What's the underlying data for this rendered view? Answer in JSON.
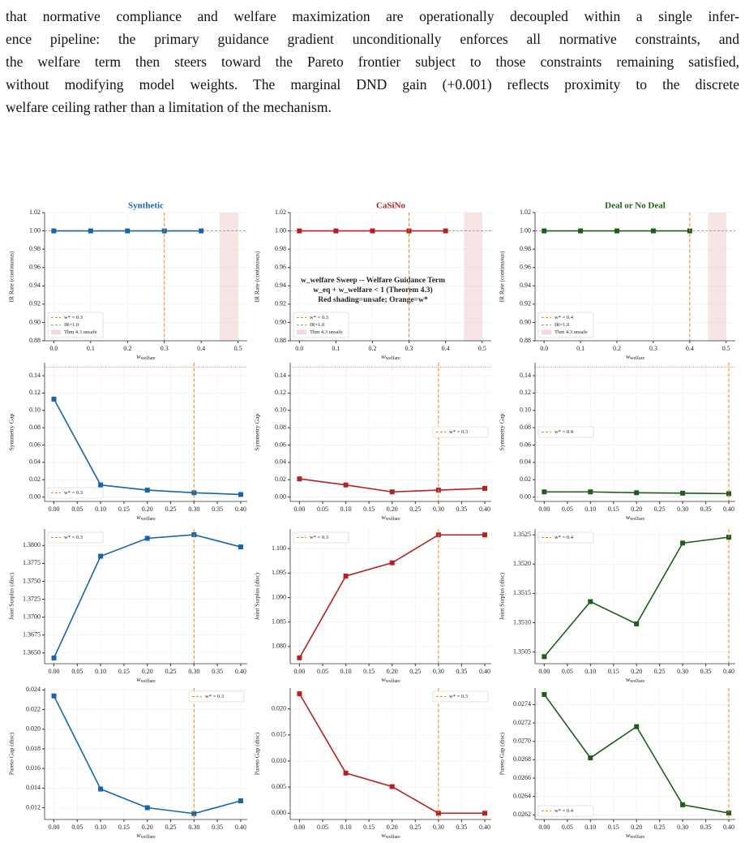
{
  "paragraph": {
    "lines": [
      "that normative compliance and welfare maximization are operationally decoupled within a single infer-",
      "ence pipeline: the primary guidance gradient unconditionally enforces all normative constraints, and",
      "the welfare term then steers toward the Pareto frontier subject to those constraints remaining satisfied,",
      "without modifying model weights. The marginal DND gain (+0.001) reflects proximity to the discrete",
      "welfare ceiling rather than a limitation of the mechanism."
    ]
  },
  "figure": {
    "title_lines": [
      "w_welfare Sweep -- Welfare Guidance Term",
      "w_eq + w_welfare < 1 (Theorem 4.3)",
      "Red shading=unsafe; Orange=w*"
    ]
  },
  "chart_data": [
    {
      "type": "line",
      "title": "Synthetic",
      "x_label": "w",
      "x_label_sub": "welfare",
      "y_label": "IR Rate (continuous)",
      "x": [
        0,
        0.1,
        0.2,
        0.3,
        0.4
      ],
      "series": [
        {
          "color": "#1764ab",
          "values": [
            1,
            1,
            1,
            1,
            1
          ]
        }
      ],
      "xlim": [
        -0.025,
        0.525
      ],
      "xticks": [
        {
          "value": 0,
          "label": "0.0"
        },
        0.1,
        0.2,
        0.3,
        0.4,
        0.5
      ],
      "ylim": [
        0.88,
        1.02
      ],
      "yticks": [
        0.88,
        {
          "value": 0.9,
          "label": "0.90"
        },
        0.92,
        0.94,
        0.96,
        0.98,
        {
          "value": 1,
          "label": "1.00"
        },
        1.02
      ],
      "grid": true,
      "legend": "lower left",
      "optimal": {
        "label": "w* = 0.3",
        "value": 0.3,
        "color": "#ff7f0e"
      },
      "reference_line": {
        "label": "IR=1.0",
        "value": 1.0,
        "color": "#999999"
      },
      "unsafe_region": {
        "label": "Thm 4.3 unsafe",
        "range": [
          0.45,
          0.5
        ],
        "color": "#e8b4b8"
      }
    },
    {
      "type": "line",
      "title": "CaSiNo",
      "x_label": "w",
      "x_label_sub": "welfare",
      "y_label": "IR Rate (continuous)",
      "x": [
        0,
        0.1,
        0.2,
        0.3,
        0.4
      ],
      "series": [
        {
          "color": "#b22222",
          "values": [
            1,
            1,
            1,
            1,
            1
          ]
        }
      ],
      "xlim": [
        -0.025,
        0.525
      ],
      "xticks": [
        {
          "value": 0,
          "label": "0.0"
        },
        0.1,
        0.2,
        0.3,
        0.4,
        0.5
      ],
      "ylim": [
        0.88,
        1.02
      ],
      "yticks": [
        0.88,
        {
          "value": 0.9,
          "label": "0.90"
        },
        0.92,
        0.94,
        0.96,
        0.98,
        {
          "value": 1,
          "label": "1.00"
        },
        1.02
      ],
      "grid": true,
      "legend": "lower left",
      "optimal": {
        "label": "w* = 0.3",
        "value": 0.3,
        "color": "#ff7f0e"
      },
      "reference_line": {
        "label": "IR=1.0",
        "value": 1.0,
        "color": "#999999"
      },
      "unsafe_region": {
        "label": "Thm 4.3 unsafe",
        "range": [
          0.45,
          0.5
        ],
        "color": "#e8b4b8"
      }
    },
    {
      "type": "line",
      "title": "Deal or No Deal",
      "x_label": "w",
      "x_label_sub": "welfare",
      "y_label": "IR Rate (continuous)",
      "x": [
        0,
        0.1,
        0.2,
        0.3,
        0.4
      ],
      "series": [
        {
          "color": "#1e5c1e",
          "values": [
            1,
            1,
            1,
            1,
            1
          ]
        }
      ],
      "xlim": [
        -0.025,
        0.525
      ],
      "xticks": [
        {
          "value": 0,
          "label": "0.0"
        },
        0.1,
        0.2,
        0.3,
        0.4,
        0.5
      ],
      "ylim": [
        0.88,
        1.02
      ],
      "yticks": [
        0.88,
        {
          "value": 0.9,
          "label": "0.90"
        },
        0.92,
        0.94,
        0.96,
        0.98,
        {
          "value": 1,
          "label": "1.00"
        },
        1.02
      ],
      "grid": true,
      "legend": "lower left",
      "optimal": {
        "label": "w* = 0.4",
        "value": 0.4,
        "color": "#ff7f0e"
      },
      "reference_line": {
        "label": "IR=1.0",
        "value": 1.0,
        "color": "#999999"
      },
      "unsafe_region": {
        "label": "Thm 4.3 unsafe",
        "range": [
          0.45,
          0.5
        ],
        "color": "#e8b4b8"
      }
    },
    {
      "type": "line",
      "x_label": "w",
      "x_label_sub": "welfare",
      "y_label": "Symmetry Gap",
      "x": [
        0,
        0.1,
        0.2,
        0.3,
        0.4
      ],
      "series": [
        {
          "color": "#1764ab",
          "values": [
            0.113,
            0.014,
            0.008,
            0.005,
            0.003
          ]
        }
      ],
      "xlim": [
        -0.02,
        0.414
      ],
      "xticks": [
        {
          "value": 0,
          "label": "0.00"
        },
        0.05,
        {
          "value": 0.1,
          "label": "0.10"
        },
        0.15,
        {
          "value": 0.2,
          "label": "0.20"
        },
        0.25,
        {
          "value": 0.3,
          "label": "0.30"
        },
        0.35,
        {
          "value": 0.4,
          "label": "0.40"
        }
      ],
      "ylim": [
        -0.005,
        0.155
      ],
      "yticks": [
        {
          "value": 0,
          "label": "0.00"
        },
        0.02,
        0.04,
        0.06,
        0.08,
        {
          "value": 0.1,
          "label": "0.10"
        },
        0.12,
        0.14
      ],
      "grid": true,
      "legend": "lower left",
      "threshold": {
        "value": 0.15,
        "color": "#e06060"
      },
      "optimal": {
        "label": "w* = 0.3",
        "value": 0.3,
        "color": "#ff7f0e"
      }
    },
    {
      "type": "line",
      "x_label": "w",
      "x_label_sub": "welfare",
      "y_label": "Symmetry Gap",
      "x": [
        0,
        0.1,
        0.2,
        0.3,
        0.4
      ],
      "series": [
        {
          "color": "#b22222",
          "values": [
            0.021,
            0.014,
            0.006,
            0.008,
            0.01
          ]
        }
      ],
      "xlim": [
        -0.02,
        0.414
      ],
      "xticks": [
        {
          "value": 0,
          "label": "0.00"
        },
        0.05,
        {
          "value": 0.1,
          "label": "0.10"
        },
        0.15,
        {
          "value": 0.2,
          "label": "0.20"
        },
        0.25,
        {
          "value": 0.3,
          "label": "0.30"
        },
        0.35,
        {
          "value": 0.4,
          "label": "0.40"
        }
      ],
      "ylim": [
        -0.005,
        0.155
      ],
      "yticks": [
        {
          "value": 0,
          "label": "0.00"
        },
        0.02,
        0.04,
        0.06,
        0.08,
        {
          "value": 0.1,
          "label": "0.10"
        },
        0.12,
        0.14
      ],
      "grid": true,
      "legend": "center right",
      "threshold": {
        "value": 0.15,
        "color": "#e06060"
      },
      "optimal": {
        "label": "w* = 0.3",
        "value": 0.3,
        "color": "#ff7f0e"
      }
    },
    {
      "type": "line",
      "x_label": "w",
      "x_label_sub": "welfare",
      "y_label": "Symmetry Gap",
      "x": [
        0,
        0.1,
        0.2,
        0.3,
        0.4
      ],
      "series": [
        {
          "color": "#1e5c1e",
          "values": [
            0.006,
            0.006,
            0.005,
            0.0045,
            0.004
          ]
        }
      ],
      "xlim": [
        -0.02,
        0.414
      ],
      "xticks": [
        {
          "value": 0,
          "label": "0.00"
        },
        0.05,
        {
          "value": 0.1,
          "label": "0.10"
        },
        0.15,
        {
          "value": 0.2,
          "label": "0.20"
        },
        0.25,
        {
          "value": 0.3,
          "label": "0.30"
        },
        0.35,
        {
          "value": 0.4,
          "label": "0.40"
        }
      ],
      "ylim": [
        -0.005,
        0.155
      ],
      "yticks": [
        {
          "value": 0,
          "label": "0.00"
        },
        0.02,
        0.04,
        0.06,
        0.08,
        {
          "value": 0.1,
          "label": "0.10"
        },
        0.12,
        0.14
      ],
      "grid": true,
      "legend": "center left",
      "threshold": {
        "value": 0.15,
        "color": "#e06060"
      },
      "optimal": {
        "label": "w* = 0.4",
        "value": 0.4,
        "color": "#ff7f0e"
      }
    },
    {
      "type": "line",
      "x_label": "w",
      "x_label_sub": "welfare",
      "y_label": "Joint Surplus (disc)",
      "x": [
        0,
        0.1,
        0.2,
        0.3,
        0.4
      ],
      "series": [
        {
          "color": "#1764ab",
          "values": [
            1.3643,
            1.3785,
            1.381,
            1.3815,
            1.3798
          ]
        }
      ],
      "xlim": [
        -0.02,
        0.414
      ],
      "xticks": [
        {
          "value": 0,
          "label": "0.00"
        },
        0.05,
        {
          "value": 0.1,
          "label": "0.10"
        },
        0.15,
        {
          "value": 0.2,
          "label": "0.20"
        },
        0.25,
        {
          "value": 0.3,
          "label": "0.30"
        },
        0.35,
        {
          "value": 0.4,
          "label": "0.40"
        }
      ],
      "ylim": [
        1.3635,
        1.3823
      ],
      "yticks": [
        {
          "value": 1.365,
          "label": "1.3650"
        },
        1.3675,
        {
          "value": 1.37,
          "label": "1.3700"
        },
        1.3725,
        {
          "value": 1.375,
          "label": "1.3750"
        },
        1.3775,
        {
          "value": 1.38,
          "label": "1.3800"
        }
      ],
      "grid": true,
      "legend": "upper left",
      "optimal": {
        "label": "w* = 0.3",
        "value": 0.3,
        "color": "#ff7f0e"
      }
    },
    {
      "type": "line",
      "x_label": "w",
      "x_label_sub": "welfare",
      "y_label": "Joint Surplus (disc)",
      "x": [
        0,
        0.1,
        0.2,
        0.3,
        0.4
      ],
      "series": [
        {
          "color": "#b22222",
          "values": [
            1.0777,
            1.0944,
            1.0971,
            1.1028,
            1.1028
          ]
        }
      ],
      "xlim": [
        -0.02,
        0.414
      ],
      "xticks": [
        {
          "value": 0,
          "label": "0.00"
        },
        0.05,
        {
          "value": 0.1,
          "label": "0.10"
        },
        0.15,
        {
          "value": 0.2,
          "label": "0.20"
        },
        0.25,
        {
          "value": 0.3,
          "label": "0.30"
        },
        0.35,
        {
          "value": 0.4,
          "label": "0.40"
        }
      ],
      "ylim": [
        1.0765,
        1.104
      ],
      "yticks": [
        {
          "value": 1.08,
          "label": "1.080"
        },
        1.085,
        {
          "value": 1.09,
          "label": "1.090"
        },
        1.095,
        {
          "value": 1.1,
          "label": "1.100"
        }
      ],
      "grid": true,
      "legend": "upper left",
      "optimal": {
        "label": "w* = 0.3",
        "value": 0.3,
        "color": "#ff7f0e"
      }
    },
    {
      "type": "line",
      "x_label": "w",
      "x_label_sub": "welfare",
      "y_label": "Joint Surplus (disc)",
      "x": [
        0,
        0.1,
        0.2,
        0.3,
        0.4
      ],
      "series": [
        {
          "color": "#1e5c1e",
          "values": [
            1.35042,
            1.35136,
            1.35098,
            1.35236,
            1.35246
          ]
        }
      ],
      "xlim": [
        -0.02,
        0.414
      ],
      "xticks": [
        {
          "value": 0,
          "label": "0.00"
        },
        0.05,
        {
          "value": 0.1,
          "label": "0.10"
        },
        0.15,
        {
          "value": 0.2,
          "label": "0.20"
        },
        0.25,
        {
          "value": 0.3,
          "label": "0.30"
        },
        0.35,
        {
          "value": 0.4,
          "label": "0.40"
        }
      ],
      "ylim": [
        1.3503,
        1.3526
      ],
      "yticks": [
        1.3505,
        {
          "value": 1.351,
          "label": "1.3510"
        },
        1.3515,
        {
          "value": 1.352,
          "label": "1.3520"
        },
        1.3525
      ],
      "grid": true,
      "legend": "upper left",
      "optimal": {
        "label": "w* = 0.4",
        "value": 0.4,
        "color": "#ff7f0e"
      }
    },
    {
      "type": "line",
      "x_label": "w",
      "x_label_sub": "welfare",
      "y_label": "Pareto Gap (disc)",
      "x": [
        0,
        0.1,
        0.2,
        0.3,
        0.4
      ],
      "series": [
        {
          "color": "#1764ab",
          "values": [
            0.0234,
            0.0139,
            0.012,
            0.0114,
            0.0127
          ]
        }
      ],
      "xlim": [
        -0.02,
        0.414
      ],
      "xticks": [
        {
          "value": 0,
          "label": "0.00"
        },
        0.05,
        {
          "value": 0.1,
          "label": "0.10"
        },
        0.15,
        {
          "value": 0.2,
          "label": "0.20"
        },
        0.25,
        {
          "value": 0.3,
          "label": "0.30"
        },
        0.35,
        {
          "value": 0.4,
          "label": "0.40"
        }
      ],
      "ylim": [
        0.0108,
        0.0242
      ],
      "yticks": [
        0.012,
        0.014,
        0.016,
        0.018,
        {
          "value": 0.02,
          "label": "0.020"
        },
        0.022,
        0.024
      ],
      "grid": true,
      "legend": "upper right",
      "optimal": {
        "label": "w* = 0.3",
        "value": 0.3,
        "color": "#ff7f0e"
      }
    },
    {
      "type": "line",
      "x_label": "w",
      "x_label_sub": "welfare",
      "y_label": "Pareto Gap (disc)",
      "x": [
        0,
        0.1,
        0.2,
        0.3,
        0.4
      ],
      "series": [
        {
          "color": "#b22222",
          "values": [
            0.0229,
            0.0077,
            0.0051,
            0,
            0
          ]
        }
      ],
      "xlim": [
        -0.02,
        0.414
      ],
      "xticks": [
        {
          "value": 0,
          "label": "0.00"
        },
        0.05,
        {
          "value": 0.1,
          "label": "0.10"
        },
        0.15,
        {
          "value": 0.2,
          "label": "0.20"
        },
        0.25,
        {
          "value": 0.3,
          "label": "0.30"
        },
        0.35,
        {
          "value": 0.4,
          "label": "0.40"
        }
      ],
      "ylim": [
        -0.0012,
        0.024
      ],
      "yticks": [
        {
          "value": 0,
          "label": "0.000"
        },
        0.005,
        {
          "value": 0.01,
          "label": "0.010"
        },
        0.015,
        {
          "value": 0.02,
          "label": "0.020"
        }
      ],
      "grid": true,
      "legend": "upper right",
      "optimal": {
        "label": "w* = 0.3",
        "value": 0.3,
        "color": "#ff7f0e"
      }
    },
    {
      "type": "line",
      "x_label": "w",
      "x_label_sub": "welfare",
      "y_label": "Pareto Gap (disc)",
      "x": [
        0,
        0.1,
        0.2,
        0.3,
        0.4
      ],
      "series": [
        {
          "color": "#1e5c1e",
          "values": [
            0.02751,
            0.02682,
            0.02716,
            0.02631,
            0.02622
          ]
        }
      ],
      "xlim": [
        -0.02,
        0.414
      ],
      "xticks": [
        {
          "value": 0,
          "label": "0.00"
        },
        0.05,
        {
          "value": 0.1,
          "label": "0.10"
        },
        0.15,
        {
          "value": 0.2,
          "label": "0.20"
        },
        0.25,
        {
          "value": 0.3,
          "label": "0.30"
        },
        0.35,
        {
          "value": 0.4,
          "label": "0.40"
        }
      ],
      "ylim": [
        0.02615,
        0.02758
      ],
      "yticks": [
        0.0262,
        0.0264,
        0.0266,
        0.0268,
        {
          "value": 0.027,
          "label": "0.0270"
        },
        0.0272,
        0.0274
      ],
      "grid": true,
      "legend": "lower left",
      "optimal": {
        "label": "w* = 0.4",
        "value": 0.4,
        "color": "#ff7f0e"
      }
    }
  ]
}
